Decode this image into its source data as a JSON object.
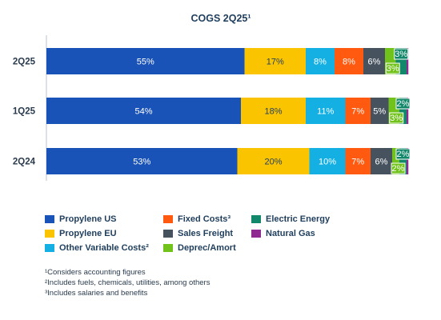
{
  "chart_data": {
    "type": "bar",
    "orientation": "horizontal",
    "stacked": true,
    "title": "COGS 2Q25¹",
    "categories": [
      "2Q25",
      "1Q25",
      "2Q24"
    ],
    "series": [
      {
        "name": "Propylene US",
        "color": "#1a53b8",
        "values": [
          55,
          54,
          53
        ],
        "labels": [
          "55%",
          "54%",
          "53%"
        ],
        "label_color": "#ffffff"
      },
      {
        "name": "Propylene EU",
        "color": "#fac400",
        "values": [
          17,
          18,
          20
        ],
        "labels": [
          "17%",
          "18%",
          "20%"
        ],
        "label_color": "#1f3e5c"
      },
      {
        "name": "Other Variable Costs²",
        "color": "#14b0e3",
        "values": [
          8,
          11,
          10
        ],
        "labels": [
          "8%",
          "11%",
          "10%"
        ],
        "label_color": "#ffffff"
      },
      {
        "name": "Fixed Costs³",
        "color": "#ff5a0f",
        "values": [
          8,
          7,
          7
        ],
        "labels": [
          "8%",
          "7%",
          "7%"
        ],
        "label_color": "#ffffff"
      },
      {
        "name": "Sales Freight",
        "color": "#46525e",
        "values": [
          6,
          5,
          6
        ],
        "labels": [
          "6%",
          "5%",
          "6%"
        ],
        "label_color": "#ffffff"
      },
      {
        "name": "Deprec/Amort",
        "color": "#71c21b",
        "values": [
          3,
          3,
          2
        ],
        "labels": [
          "3%",
          "3%",
          "2%"
        ],
        "label_color": "#ffffff"
      },
      {
        "name": "Electric Energy",
        "color": "#12876a",
        "values": [
          3,
          2,
          2
        ],
        "labels": [
          "3%",
          "2%",
          "2%"
        ],
        "label_color": "#ffffff"
      },
      {
        "name": "Natural Gas",
        "color": "#8e2a90",
        "values": [
          0.5,
          0.5,
          0.5
        ],
        "labels": [
          "",
          "",
          ""
        ],
        "label_color": "#ffffff"
      }
    ],
    "xlim": [
      0,
      100
    ],
    "grid": false,
    "legend_position": "bottom"
  },
  "legend": [
    {
      "name": "Propylene US",
      "color": "#1a53b8"
    },
    {
      "name": "Propylene EU",
      "color": "#fac400"
    },
    {
      "name": "Other Variable Costs²",
      "color": "#14b0e3"
    },
    {
      "name": "Fixed Costs³",
      "color": "#ff5a0f"
    },
    {
      "name": "Sales Freight",
      "color": "#46525e"
    },
    {
      "name": "Deprec/Amort",
      "color": "#71c21b"
    },
    {
      "name": "Electric Energy",
      "color": "#12876a"
    },
    {
      "name": "Natural Gas",
      "color": "#8e2a90"
    }
  ],
  "footnotes": [
    "¹Considers accounting figures",
    "²Includes fuels, chemicals, utilities, among others",
    "³Includes salaries and benefits"
  ]
}
